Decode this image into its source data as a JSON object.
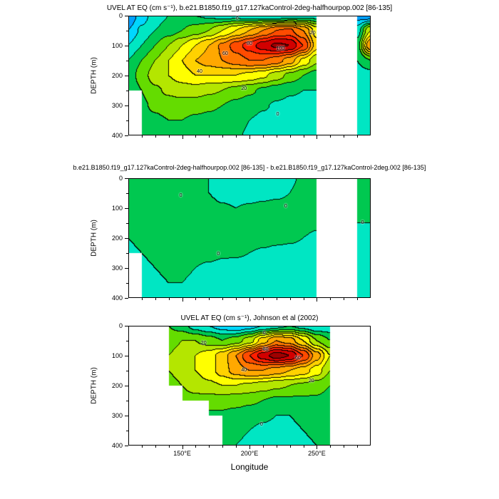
{
  "figure": {
    "panels": [
      {
        "title": "UVEL AT EQ (cm s⁻¹), b.e21.B1850.f19_g17.127kaControl-2deg-halfhourpop.002 [86-135]",
        "show_x_labels": false
      },
      {
        "title": "b.e21.B1850.f19_g17.127kaControl-2deg-halfhourpop.002 [86-135] - b.e21.B1850.f19_g17.127kaControl-2deg.002 [86-135]",
        "show_x_labels": false
      },
      {
        "title": "UVEL AT EQ (cm s⁻¹), Johnson et al (2002)",
        "show_x_labels": true
      }
    ],
    "xlabel": "Longitude",
    "ylabel": "DEPTH (m)",
    "x_axis": {
      "major": [
        150,
        200,
        250
      ],
      "labels": [
        "150°E",
        "200°E",
        "250°E"
      ],
      "minor_start": 120,
      "minor_end": 280,
      "minor_step": 10
    },
    "y_axis": {
      "max": 400,
      "major_step": 100,
      "minor_step": 50,
      "labels": [
        "0",
        "100",
        "200",
        "300",
        "400"
      ]
    },
    "palette": {
      "levels": [
        -40,
        -30,
        -20,
        -10,
        0,
        10,
        20,
        30,
        40,
        50,
        60,
        70,
        80,
        90,
        100
      ],
      "colors": [
        "#0000C8",
        "#0050FF",
        "#00A0FF",
        "#00D7FF",
        "#00E6C3",
        "#00C850",
        "#64DC00",
        "#B4E600",
        "#FFFF00",
        "#FFD200",
        "#FFA800",
        "#FF7800",
        "#FF4B00",
        "#FF1E00",
        "#D20000",
        "#A00000"
      ]
    }
  },
  "chart_data": [
    {
      "type": "heatmap",
      "subtype": "filled-contour",
      "title": "UVEL AT EQ (cm s⁻¹), b.e21.B1850.f19_g17.127kaControl-2deg-halfhourpop.002 [86-135]",
      "xlabel": "Longitude",
      "ylabel": "DEPTH (m)",
      "units": "cm s⁻¹",
      "xlim": [
        110,
        290
      ],
      "ylim": [
        0,
        400
      ],
      "contour_interval": 10,
      "levels": [
        -40,
        -30,
        -20,
        -10,
        0,
        10,
        20,
        30,
        40,
        50,
        60,
        70,
        80,
        90,
        100
      ],
      "x": [
        110,
        120,
        130,
        140,
        150,
        160,
        170,
        180,
        190,
        200,
        210,
        220,
        230,
        240,
        250,
        260,
        270,
        280,
        290
      ],
      "y": [
        0,
        50,
        100,
        150,
        200,
        250,
        300,
        350,
        400
      ],
      "values": [
        [
          -30,
          -15,
          -5,
          0,
          2,
          0,
          -2,
          -5,
          -5,
          -8,
          -10,
          -10,
          -8,
          -5,
          -5,
          null,
          null,
          -25,
          -30
        ],
        [
          -20,
          -8,
          0,
          5,
          10,
          15,
          20,
          30,
          40,
          50,
          60,
          70,
          72,
          60,
          35,
          null,
          null,
          -5,
          30
        ],
        [
          -10,
          0,
          10,
          20,
          30,
          40,
          50,
          62,
          75,
          85,
          95,
          102,
          100,
          80,
          45,
          null,
          null,
          5,
          60
        ],
        [
          0,
          10,
          20,
          30,
          40,
          50,
          55,
          60,
          65,
          70,
          70,
          65,
          55,
          38,
          22,
          null,
          null,
          0,
          10
        ],
        [
          2,
          15,
          25,
          30,
          35,
          40,
          40,
          40,
          40,
          37,
          32,
          25,
          17,
          10,
          5,
          null,
          null,
          -5,
          -5
        ],
        [
          0,
          10,
          18,
          22,
          25,
          25,
          22,
          20,
          16,
          12,
          8,
          4,
          1,
          0,
          0,
          null,
          null,
          -6,
          -6
        ],
        [
          null,
          8,
          12,
          15,
          15,
          14,
          12,
          10,
          7,
          4,
          1,
          -1,
          -2,
          -2,
          0,
          null,
          null,
          -6,
          -6
        ],
        [
          null,
          5,
          8,
          10,
          10,
          8,
          7,
          5,
          3,
          0,
          -2,
          -4,
          -4,
          -3,
          0,
          null,
          null,
          -4,
          -4
        ],
        [
          null,
          3,
          5,
          6,
          6,
          5,
          4,
          3,
          1,
          -1,
          -3,
          -4,
          -3,
          -2,
          0,
          null,
          null,
          -3,
          -3
        ]
      ],
      "contour_labels": [
        {
          "text": "0",
          "lon": 192,
          "depth": 12
        },
        {
          "text": "20",
          "lon": 247,
          "depth": 60
        },
        {
          "text": "80",
          "lon": 200,
          "depth": 95
        },
        {
          "text": "100",
          "lon": 222,
          "depth": 112
        },
        {
          "text": "60",
          "lon": 182,
          "depth": 128
        },
        {
          "text": "40",
          "lon": 163,
          "depth": 188
        },
        {
          "text": "20",
          "lon": 196,
          "depth": 246
        },
        {
          "text": "0",
          "lon": 222,
          "depth": 330
        }
      ]
    },
    {
      "type": "heatmap",
      "subtype": "filled-contour",
      "title": "b.e21.B1850.f19_g17.127kaControl-2deg-halfhourpop.002 [86-135] - b.e21.B1850.f19_g17.127kaControl-2deg.002 [86-135]",
      "xlabel": "Longitude",
      "ylabel": "DEPTH (m)",
      "units": "cm s⁻¹",
      "xlim": [
        110,
        290
      ],
      "ylim": [
        0,
        400
      ],
      "contour_interval": 10,
      "levels": [
        -40,
        -30,
        -20,
        -10,
        0,
        10,
        20,
        30,
        40,
        50,
        60,
        70,
        80,
        90,
        100
      ],
      "x": [
        110,
        120,
        130,
        140,
        150,
        160,
        170,
        180,
        190,
        200,
        210,
        220,
        230,
        240,
        250,
        260,
        270,
        280,
        290
      ],
      "y": [
        0,
        50,
        100,
        150,
        200,
        250,
        300,
        350,
        400
      ],
      "values": [
        [
          2,
          1,
          2,
          1,
          2,
          1,
          0,
          -2,
          -3,
          -3,
          -2,
          -2,
          -1,
          1,
          2,
          null,
          null,
          1,
          1
        ],
        [
          3,
          2,
          3,
          2,
          3,
          2,
          0,
          -3,
          -4,
          -4,
          -3,
          -2,
          0,
          2,
          3,
          null,
          null,
          1,
          1
        ],
        [
          2,
          3,
          4,
          3,
          4,
          5,
          3,
          1,
          0,
          1,
          2,
          3,
          3,
          4,
          3,
          null,
          null,
          0,
          1
        ],
        [
          1,
          2,
          3,
          4,
          5,
          6,
          6,
          7,
          7,
          6,
          5,
          4,
          3,
          2,
          1,
          null,
          null,
          0,
          0
        ],
        [
          0,
          1,
          2,
          3,
          4,
          4,
          5,
          5,
          4,
          4,
          3,
          2,
          1,
          0,
          -1,
          null,
          null,
          -1,
          0
        ],
        [
          -1,
          0,
          1,
          2,
          2,
          2,
          2,
          1,
          1,
          0,
          -1,
          -2,
          -2,
          -2,
          -2,
          null,
          null,
          -1,
          -1
        ],
        [
          null,
          -1,
          0,
          1,
          1,
          0,
          -1,
          -2,
          -3,
          -3,
          -4,
          -4,
          -3,
          -3,
          -2,
          null,
          null,
          -1,
          -1
        ],
        [
          null,
          -2,
          -1,
          0,
          0,
          -1,
          -2,
          -3,
          -4,
          -5,
          -5,
          -4,
          -4,
          -3,
          -2,
          null,
          null,
          -1,
          -1
        ],
        [
          null,
          -2,
          -2,
          -1,
          -1,
          -2,
          -3,
          -4,
          -5,
          -5,
          -5,
          -4,
          -3,
          -2,
          -2,
          null,
          null,
          -1,
          -1
        ]
      ],
      "contour_labels": [
        {
          "text": "0",
          "lon": 150,
          "depth": 60
        },
        {
          "text": "0",
          "lon": 228,
          "depth": 95
        },
        {
          "text": "0",
          "lon": 178,
          "depth": 255
        },
        {
          "text": "0",
          "lon": 285,
          "depth": 150
        }
      ]
    },
    {
      "type": "heatmap",
      "subtype": "filled-contour",
      "title": "UVEL AT EQ (cm s⁻¹), Johnson et al (2002)",
      "xlabel": "Longitude",
      "ylabel": "DEPTH (m)",
      "units": "cm s⁻¹",
      "xlim": [
        110,
        290
      ],
      "ylim": [
        0,
        400
      ],
      "contour_interval": 10,
      "levels": [
        -40,
        -30,
        -20,
        -10,
        0,
        10,
        20,
        30,
        40,
        50,
        60,
        70,
        80,
        90,
        100
      ],
      "x": [
        110,
        120,
        130,
        140,
        150,
        160,
        170,
        180,
        190,
        200,
        210,
        220,
        230,
        240,
        250,
        260,
        270,
        280,
        290
      ],
      "y": [
        0,
        50,
        100,
        150,
        200,
        250,
        300,
        350,
        400
      ],
      "values": [
        [
          null,
          null,
          null,
          10,
          5,
          -5,
          -10,
          -15,
          -20,
          -15,
          -10,
          -5,
          0,
          -5,
          -10,
          -8,
          null,
          null,
          null
        ],
        [
          null,
          null,
          null,
          15,
          20,
          20,
          15,
          10,
          15,
          25,
          45,
          60,
          55,
          40,
          20,
          10,
          null,
          null,
          null
        ],
        [
          null,
          null,
          null,
          20,
          25,
          30,
          35,
          45,
          60,
          80,
          95,
          105,
          100,
          80,
          55,
          30,
          null,
          null,
          null
        ],
        [
          null,
          null,
          null,
          20,
          25,
          30,
          35,
          45,
          55,
          60,
          60,
          55,
          50,
          45,
          35,
          20,
          null,
          null,
          null
        ],
        [
          null,
          null,
          null,
          15,
          20,
          25,
          28,
          30,
          30,
          28,
          25,
          22,
          20,
          18,
          15,
          10,
          null,
          null,
          null
        ],
        [
          null,
          null,
          null,
          null,
          15,
          16,
          15,
          15,
          14,
          12,
          10,
          8,
          8,
          8,
          8,
          5,
          null,
          null,
          null
        ],
        [
          null,
          null,
          null,
          null,
          null,
          null,
          8,
          8,
          6,
          4,
          2,
          0,
          0,
          2,
          3,
          2,
          null,
          null,
          null
        ],
        [
          null,
          null,
          null,
          null,
          null,
          null,
          null,
          3,
          2,
          0,
          -2,
          -3,
          -2,
          0,
          1,
          0,
          null,
          null,
          null
        ],
        [
          null,
          null,
          null,
          null,
          null,
          null,
          null,
          1,
          0,
          -2,
          -3,
          -4,
          -3,
          -1,
          0,
          0,
          null,
          null,
          null
        ]
      ],
      "contour_labels": [
        {
          "text": "0",
          "lon": 212,
          "depth": 25
        },
        {
          "text": "20",
          "lon": 166,
          "depth": 60
        },
        {
          "text": "80",
          "lon": 212,
          "depth": 80
        },
        {
          "text": "60",
          "lon": 236,
          "depth": 110
        },
        {
          "text": "40",
          "lon": 196,
          "depth": 150
        },
        {
          "text": "20",
          "lon": 246,
          "depth": 185
        },
        {
          "text": "0",
          "lon": 210,
          "depth": 330
        }
      ]
    }
  ]
}
